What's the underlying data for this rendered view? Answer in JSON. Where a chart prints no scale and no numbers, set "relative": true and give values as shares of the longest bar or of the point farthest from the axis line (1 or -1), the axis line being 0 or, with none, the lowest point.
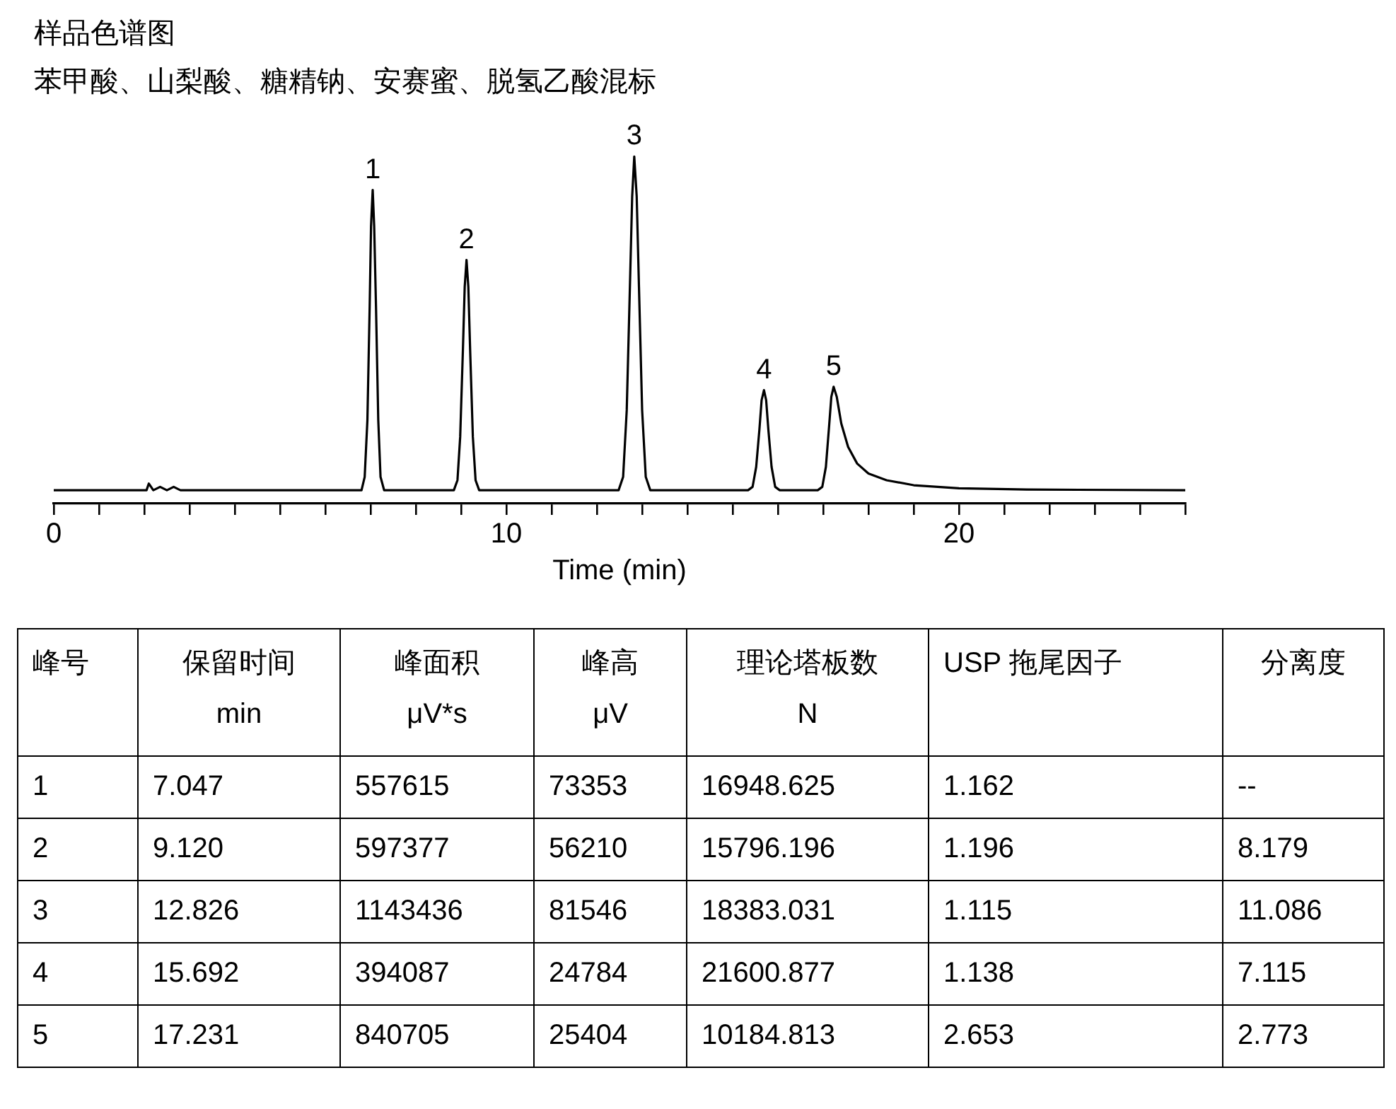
{
  "chart_data": {
    "type": "line",
    "title": "样品色谱图",
    "subtitle": "苯甲酸、山梨酸、糖精钠、安赛蜜、脱氢乙酸混标",
    "xlabel": "Time (min)",
    "relative": true,
    "grid": false,
    "legend": false,
    "marker": "none",
    "line_style": "solid",
    "tick_labels": "x",
    "xlim": [
      0,
      25
    ],
    "xticks": [
      0,
      {
        "value": 1,
        "label": null
      },
      {
        "value": 2,
        "label": null
      },
      {
        "value": 3,
        "label": null
      },
      {
        "value": 4,
        "label": null
      },
      {
        "value": 5,
        "label": null
      },
      {
        "value": 6,
        "label": null
      },
      {
        "value": 7,
        "label": null
      },
      {
        "value": 8,
        "label": null
      },
      {
        "value": 9,
        "label": null
      },
      10,
      {
        "value": 11,
        "label": null
      },
      {
        "value": 12,
        "label": null
      },
      {
        "value": 13,
        "label": null
      },
      {
        "value": 14,
        "label": null
      },
      {
        "value": 15,
        "label": null
      },
      {
        "value": 16,
        "label": null
      },
      {
        "value": 17,
        "label": null
      },
      {
        "value": 18,
        "label": null
      },
      {
        "value": 19,
        "label": null
      },
      20,
      {
        "value": 21,
        "label": null
      },
      {
        "value": 22,
        "label": null
      },
      {
        "value": 23,
        "label": null
      },
      {
        "value": 24,
        "label": null
      },
      {
        "value": 25,
        "label": null
      }
    ],
    "series": [
      {
        "color": "#000000",
        "x": [
          0,
          2.05,
          2.1,
          2.2,
          2.35,
          2.5,
          2.65,
          2.8,
          6.8,
          6.87,
          6.93,
          6.98,
          7.01,
          7.047,
          7.08,
          7.12,
          7.17,
          7.22,
          7.3,
          8.84,
          8.92,
          8.98,
          9.04,
          9.08,
          9.12,
          9.16,
          9.2,
          9.26,
          9.32,
          9.4,
          12.48,
          12.58,
          12.66,
          12.73,
          12.78,
          12.826,
          12.88,
          12.93,
          13.0,
          13.08,
          13.18,
          15.34,
          15.44,
          15.52,
          15.59,
          15.64,
          15.692,
          15.74,
          15.79,
          15.86,
          15.94,
          16.04,
          16.88,
          16.98,
          17.06,
          17.13,
          17.18,
          17.231,
          17.3,
          17.4,
          17.55,
          17.75,
          18.0,
          18.4,
          19.0,
          20.0,
          21.5,
          25
        ],
        "values": [
          0,
          0,
          0.02,
          0,
          0.01,
          0,
          0.01,
          0,
          0,
          0.04,
          0.21,
          0.55,
          0.79,
          0.9,
          0.79,
          0.55,
          0.21,
          0.04,
          0,
          0,
          0.03,
          0.16,
          0.42,
          0.61,
          0.69,
          0.61,
          0.42,
          0.16,
          0.03,
          0,
          0,
          0.04,
          0.24,
          0.61,
          0.88,
          1,
          0.88,
          0.61,
          0.24,
          0.04,
          0,
          0,
          0.01,
          0.07,
          0.18,
          0.27,
          0.3,
          0.27,
          0.18,
          0.07,
          0.01,
          0,
          0,
          0.01,
          0.07,
          0.19,
          0.28,
          0.31,
          0.28,
          0.2,
          0.13,
          0.08,
          0.05,
          0.03,
          0.015,
          0.006,
          0.002,
          0
        ]
      }
    ],
    "annotations": [
      {
        "text": "1",
        "x": 7.047,
        "y": 0.9
      },
      {
        "text": "2",
        "x": 9.12,
        "y": 0.69
      },
      {
        "text": "3",
        "x": 12.826,
        "y": 1
      },
      {
        "text": "4",
        "x": 15.692,
        "y": 0.3
      },
      {
        "text": "5",
        "x": 17.231,
        "y": 0.31
      },
      "峰号",
      "保留时间\nmin",
      "峰面积\nμV*s",
      "峰高\nμV",
      "理论塔板数\nN",
      "USP 拖尾因子",
      "分离度",
      "1",
      "7.047",
      "557615",
      "73353",
      "16948.625",
      "1.162",
      "--",
      "2",
      "9.120",
      "597377",
      "56210",
      "15796.196",
      "1.196",
      "8.179",
      "3",
      "12.826",
      "1143436",
      "81546",
      "18383.031",
      "1.115",
      "11.086",
      "4",
      "15.692",
      "394087",
      "24784",
      "21600.877",
      "1.138",
      "7.115",
      "5",
      "17.231",
      "840705",
      "25404",
      "10184.813",
      "2.653",
      "2.773"
    ]
  }
}
